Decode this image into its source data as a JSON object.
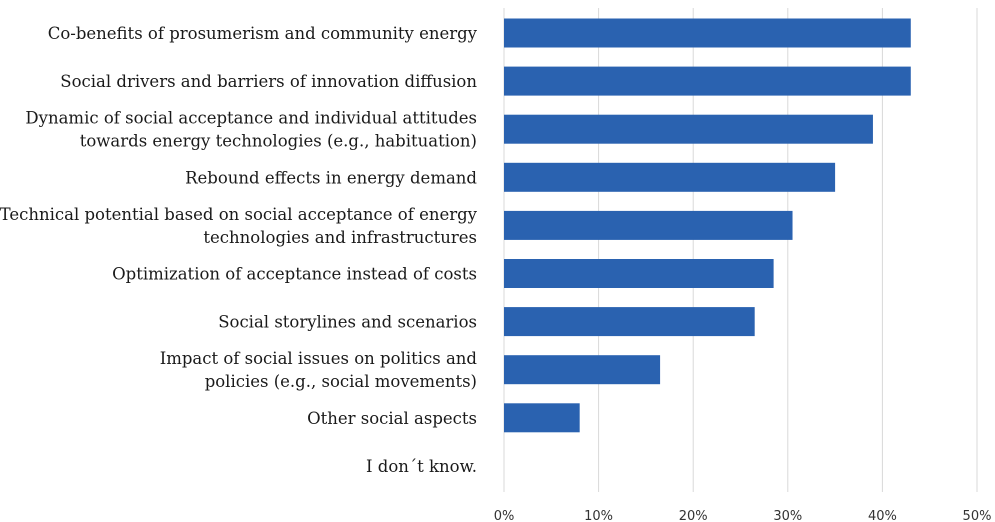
{
  "chart_data": {
    "type": "bar",
    "orientation": "horizontal",
    "categories": [
      [
        "Co-benefits of prosumerism and community energy"
      ],
      [
        "Social drivers and barriers of innovation diffusion"
      ],
      [
        "Dynamic of social acceptance and individual attitudes",
        "towards energy technologies (e.g., habituation)"
      ],
      [
        "Rebound effects in energy demand"
      ],
      [
        "Technical potential based on social acceptance of energy",
        "technologies and infrastructures"
      ],
      [
        "Optimization of acceptance instead of costs"
      ],
      [
        "Social storylines and scenarios"
      ],
      [
        "Impact of social issues on politics and",
        "policies (e.g., social movements)"
      ],
      [
        "Other social aspects"
      ],
      [
        "I don´t know."
      ]
    ],
    "values": [
      43,
      43,
      39,
      35,
      30.5,
      28.5,
      26.5,
      16.5,
      8,
      0
    ],
    "xlim": [
      0,
      50
    ],
    "xticks": [
      0,
      10,
      20,
      30,
      40,
      50
    ],
    "tick_labels": [
      "0%",
      "10%",
      "20%",
      "30%",
      "40%",
      "50%"
    ],
    "grid": true,
    "bar_color": "#2a62b0"
  }
}
